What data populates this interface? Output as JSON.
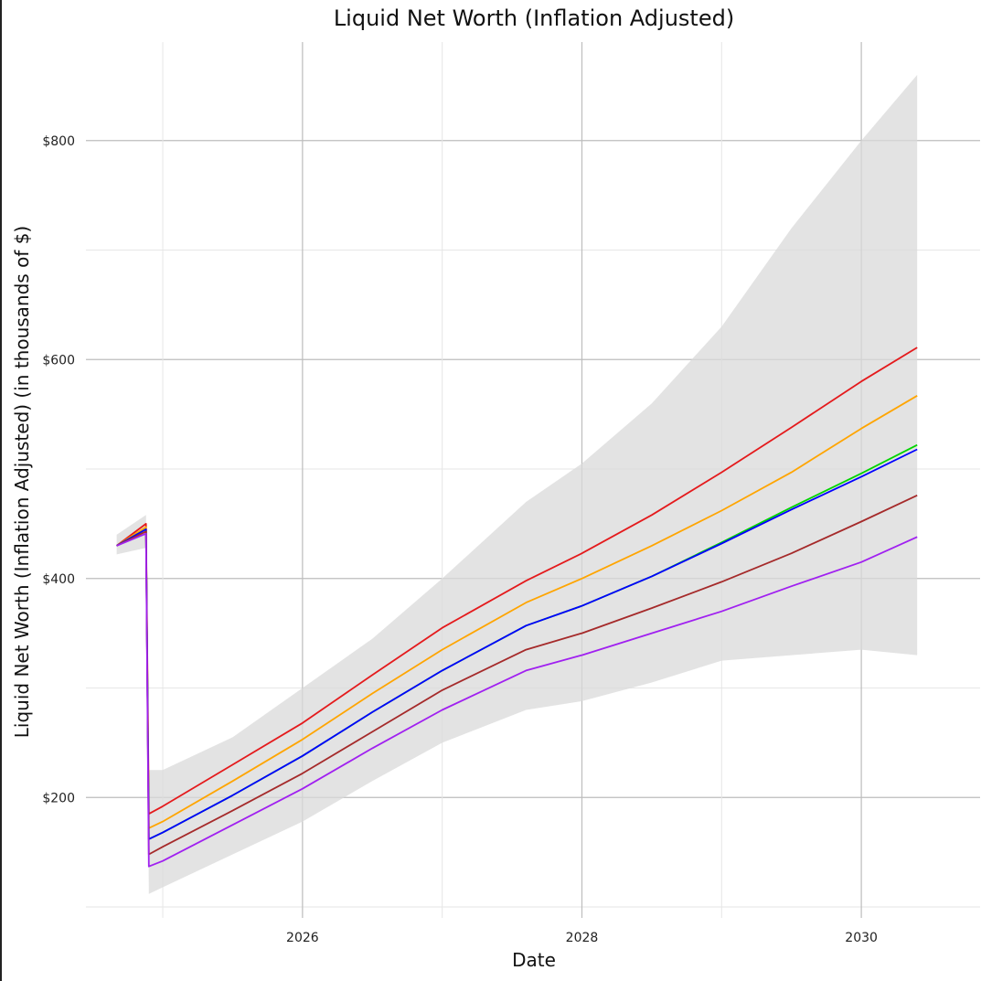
{
  "chart_data": {
    "type": "line",
    "title": "Liquid Net Worth (Inflation Adjusted)",
    "xlabel": "Date",
    "ylabel": "Liquid Net Worth (Inflation Adjusted) (in thousands of $)",
    "x_range": [
      2024.45,
      2030.85
    ],
    "ylim": [
      90,
      890
    ],
    "x_ticks": [
      2026,
      2028,
      2030
    ],
    "x_tick_labels": [
      "2026",
      "2028",
      "2030"
    ],
    "y_ticks": [
      200,
      400,
      600,
      800
    ],
    "y_tick_labels": [
      "$200",
      "$400",
      "$600",
      "$800"
    ],
    "grid": true,
    "legend": "none",
    "background_band": {
      "color": "#d9d9d9",
      "x": [
        2024.67,
        2024.88,
        2024.9,
        2025.0,
        2025.5,
        2026.0,
        2026.5,
        2027.0,
        2027.6,
        2028.0,
        2028.5,
        2029.0,
        2029.5,
        2030.0,
        2030.4
      ],
      "upper": [
        440,
        458,
        225,
        225,
        255,
        300,
        345,
        400,
        470,
        505,
        560,
        630,
        720,
        800,
        860
      ],
      "lower": [
        422,
        428,
        112,
        118,
        148,
        178,
        215,
        250,
        280,
        288,
        305,
        325,
        330,
        335,
        330
      ]
    },
    "series": [
      {
        "color": "#e41a1c",
        "x": [
          2024.67,
          2024.88,
          2024.9,
          2025.0,
          2025.5,
          2026.0,
          2026.5,
          2027.0,
          2027.6,
          2028.0,
          2028.5,
          2029.0,
          2029.5,
          2030.0,
          2030.4
        ],
        "values": [
          430,
          450,
          185,
          192,
          230,
          268,
          312,
          355,
          398,
          423,
          458,
          497,
          538,
          580,
          611
        ]
      },
      {
        "color": "#ffa500",
        "x": [
          2024.67,
          2024.88,
          2024.9,
          2025.0,
          2025.5,
          2026.0,
          2026.5,
          2027.0,
          2027.6,
          2028.0,
          2028.5,
          2029.0,
          2029.5,
          2030.0,
          2030.4
        ],
        "values": [
          430,
          447,
          172,
          178,
          215,
          253,
          295,
          335,
          378,
          400,
          430,
          462,
          497,
          537,
          567
        ]
      },
      {
        "color": "#00d400",
        "x": [
          2024.67,
          2024.88,
          2024.9,
          2025.0,
          2025.5,
          2026.0,
          2026.5,
          2027.0,
          2027.6,
          2028.0,
          2028.5,
          2029.0,
          2029.5,
          2030.0,
          2030.4
        ],
        "values": [
          430,
          445,
          162,
          168,
          202,
          238,
          278,
          316,
          357,
          375,
          402,
          433,
          465,
          496,
          522
        ]
      },
      {
        "color": "#0000ff",
        "x": [
          2024.67,
          2024.88,
          2024.9,
          2025.0,
          2025.5,
          2026.0,
          2026.5,
          2027.0,
          2027.6,
          2028.0,
          2028.5,
          2029.0,
          2029.5,
          2030.0,
          2030.4
        ],
        "values": [
          430,
          445,
          162,
          168,
          202,
          238,
          278,
          316,
          357,
          375,
          402,
          432,
          463,
          493,
          518
        ]
      },
      {
        "color": "#a52a2a",
        "x": [
          2024.67,
          2024.88,
          2024.9,
          2025.0,
          2025.5,
          2026.0,
          2026.5,
          2027.0,
          2027.6,
          2028.0,
          2028.5,
          2029.0,
          2029.5,
          2030.0,
          2030.4
        ],
        "values": [
          430,
          443,
          148,
          155,
          188,
          222,
          260,
          298,
          335,
          350,
          373,
          397,
          423,
          452,
          476
        ]
      },
      {
        "color": "#a020f0",
        "x": [
          2024.67,
          2024.88,
          2024.9,
          2025.0,
          2025.5,
          2026.0,
          2026.5,
          2027.0,
          2027.6,
          2028.0,
          2028.5,
          2029.0,
          2029.5,
          2030.0,
          2030.4
        ],
        "values": [
          430,
          441,
          137,
          142,
          175,
          208,
          245,
          280,
          316,
          330,
          350,
          370,
          393,
          415,
          438
        ]
      }
    ]
  }
}
